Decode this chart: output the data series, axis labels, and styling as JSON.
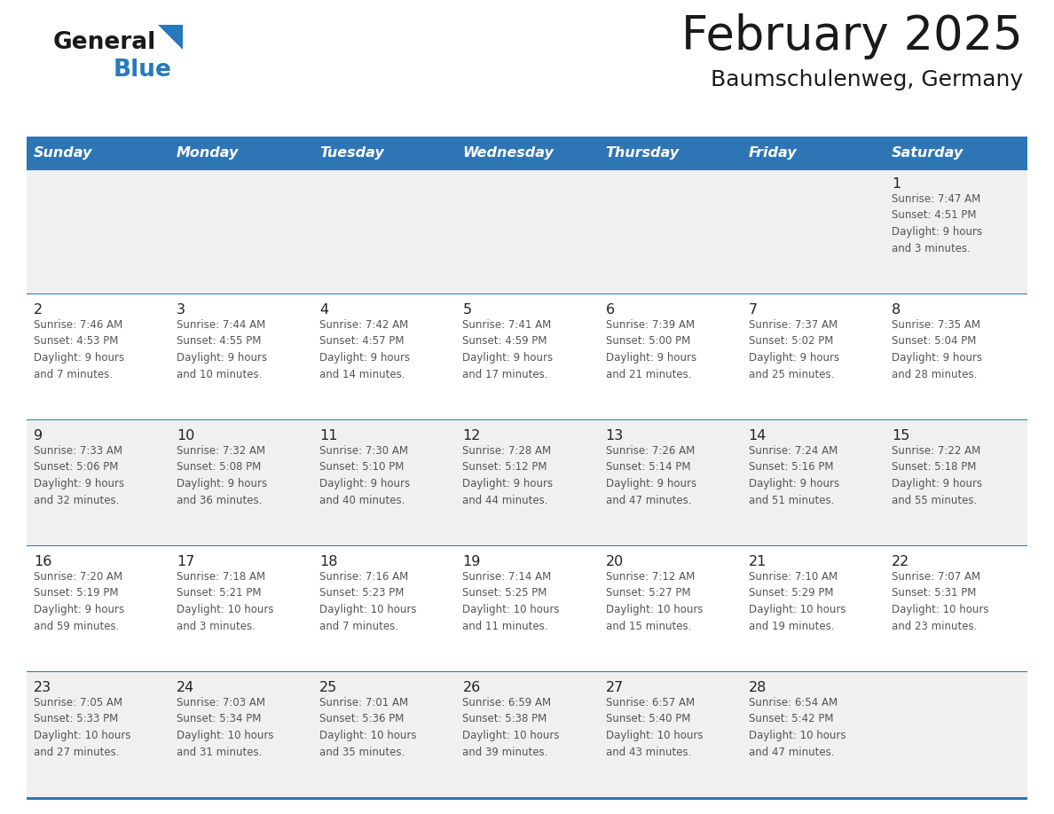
{
  "title": "February 2025",
  "subtitle": "Baumschulenweg, Germany",
  "days_of_week": [
    "Sunday",
    "Monday",
    "Tuesday",
    "Wednesday",
    "Thursday",
    "Friday",
    "Saturday"
  ],
  "header_bg": "#2E75B6",
  "header_text_color": "#FFFFFF",
  "cell_bg_odd": "#F0F0F0",
  "cell_bg_even": "#FFFFFF",
  "separator_color": "#2E75B6",
  "text_color": "#555555",
  "day_number_color": "#222222",
  "title_color": "#1A1A1A",
  "subtitle_color": "#1A1A1A",
  "logo_general_color": "#1A1A1A",
  "logo_blue_color": "#2878BE",
  "calendar_data": [
    [
      {
        "day": null,
        "info": null
      },
      {
        "day": null,
        "info": null
      },
      {
        "day": null,
        "info": null
      },
      {
        "day": null,
        "info": null
      },
      {
        "day": null,
        "info": null
      },
      {
        "day": null,
        "info": null
      },
      {
        "day": 1,
        "info": "Sunrise: 7:47 AM\nSunset: 4:51 PM\nDaylight: 9 hours\nand 3 minutes."
      }
    ],
    [
      {
        "day": 2,
        "info": "Sunrise: 7:46 AM\nSunset: 4:53 PM\nDaylight: 9 hours\nand 7 minutes."
      },
      {
        "day": 3,
        "info": "Sunrise: 7:44 AM\nSunset: 4:55 PM\nDaylight: 9 hours\nand 10 minutes."
      },
      {
        "day": 4,
        "info": "Sunrise: 7:42 AM\nSunset: 4:57 PM\nDaylight: 9 hours\nand 14 minutes."
      },
      {
        "day": 5,
        "info": "Sunrise: 7:41 AM\nSunset: 4:59 PM\nDaylight: 9 hours\nand 17 minutes."
      },
      {
        "day": 6,
        "info": "Sunrise: 7:39 AM\nSunset: 5:00 PM\nDaylight: 9 hours\nand 21 minutes."
      },
      {
        "day": 7,
        "info": "Sunrise: 7:37 AM\nSunset: 5:02 PM\nDaylight: 9 hours\nand 25 minutes."
      },
      {
        "day": 8,
        "info": "Sunrise: 7:35 AM\nSunset: 5:04 PM\nDaylight: 9 hours\nand 28 minutes."
      }
    ],
    [
      {
        "day": 9,
        "info": "Sunrise: 7:33 AM\nSunset: 5:06 PM\nDaylight: 9 hours\nand 32 minutes."
      },
      {
        "day": 10,
        "info": "Sunrise: 7:32 AM\nSunset: 5:08 PM\nDaylight: 9 hours\nand 36 minutes."
      },
      {
        "day": 11,
        "info": "Sunrise: 7:30 AM\nSunset: 5:10 PM\nDaylight: 9 hours\nand 40 minutes."
      },
      {
        "day": 12,
        "info": "Sunrise: 7:28 AM\nSunset: 5:12 PM\nDaylight: 9 hours\nand 44 minutes."
      },
      {
        "day": 13,
        "info": "Sunrise: 7:26 AM\nSunset: 5:14 PM\nDaylight: 9 hours\nand 47 minutes."
      },
      {
        "day": 14,
        "info": "Sunrise: 7:24 AM\nSunset: 5:16 PM\nDaylight: 9 hours\nand 51 minutes."
      },
      {
        "day": 15,
        "info": "Sunrise: 7:22 AM\nSunset: 5:18 PM\nDaylight: 9 hours\nand 55 minutes."
      }
    ],
    [
      {
        "day": 16,
        "info": "Sunrise: 7:20 AM\nSunset: 5:19 PM\nDaylight: 9 hours\nand 59 minutes."
      },
      {
        "day": 17,
        "info": "Sunrise: 7:18 AM\nSunset: 5:21 PM\nDaylight: 10 hours\nand 3 minutes."
      },
      {
        "day": 18,
        "info": "Sunrise: 7:16 AM\nSunset: 5:23 PM\nDaylight: 10 hours\nand 7 minutes."
      },
      {
        "day": 19,
        "info": "Sunrise: 7:14 AM\nSunset: 5:25 PM\nDaylight: 10 hours\nand 11 minutes."
      },
      {
        "day": 20,
        "info": "Sunrise: 7:12 AM\nSunset: 5:27 PM\nDaylight: 10 hours\nand 15 minutes."
      },
      {
        "day": 21,
        "info": "Sunrise: 7:10 AM\nSunset: 5:29 PM\nDaylight: 10 hours\nand 19 minutes."
      },
      {
        "day": 22,
        "info": "Sunrise: 7:07 AM\nSunset: 5:31 PM\nDaylight: 10 hours\nand 23 minutes."
      }
    ],
    [
      {
        "day": 23,
        "info": "Sunrise: 7:05 AM\nSunset: 5:33 PM\nDaylight: 10 hours\nand 27 minutes."
      },
      {
        "day": 24,
        "info": "Sunrise: 7:03 AM\nSunset: 5:34 PM\nDaylight: 10 hours\nand 31 minutes."
      },
      {
        "day": 25,
        "info": "Sunrise: 7:01 AM\nSunset: 5:36 PM\nDaylight: 10 hours\nand 35 minutes."
      },
      {
        "day": 26,
        "info": "Sunrise: 6:59 AM\nSunset: 5:38 PM\nDaylight: 10 hours\nand 39 minutes."
      },
      {
        "day": 27,
        "info": "Sunrise: 6:57 AM\nSunset: 5:40 PM\nDaylight: 10 hours\nand 43 minutes."
      },
      {
        "day": 28,
        "info": "Sunrise: 6:54 AM\nSunset: 5:42 PM\nDaylight: 10 hours\nand 47 minutes."
      },
      {
        "day": null,
        "info": null
      }
    ]
  ]
}
